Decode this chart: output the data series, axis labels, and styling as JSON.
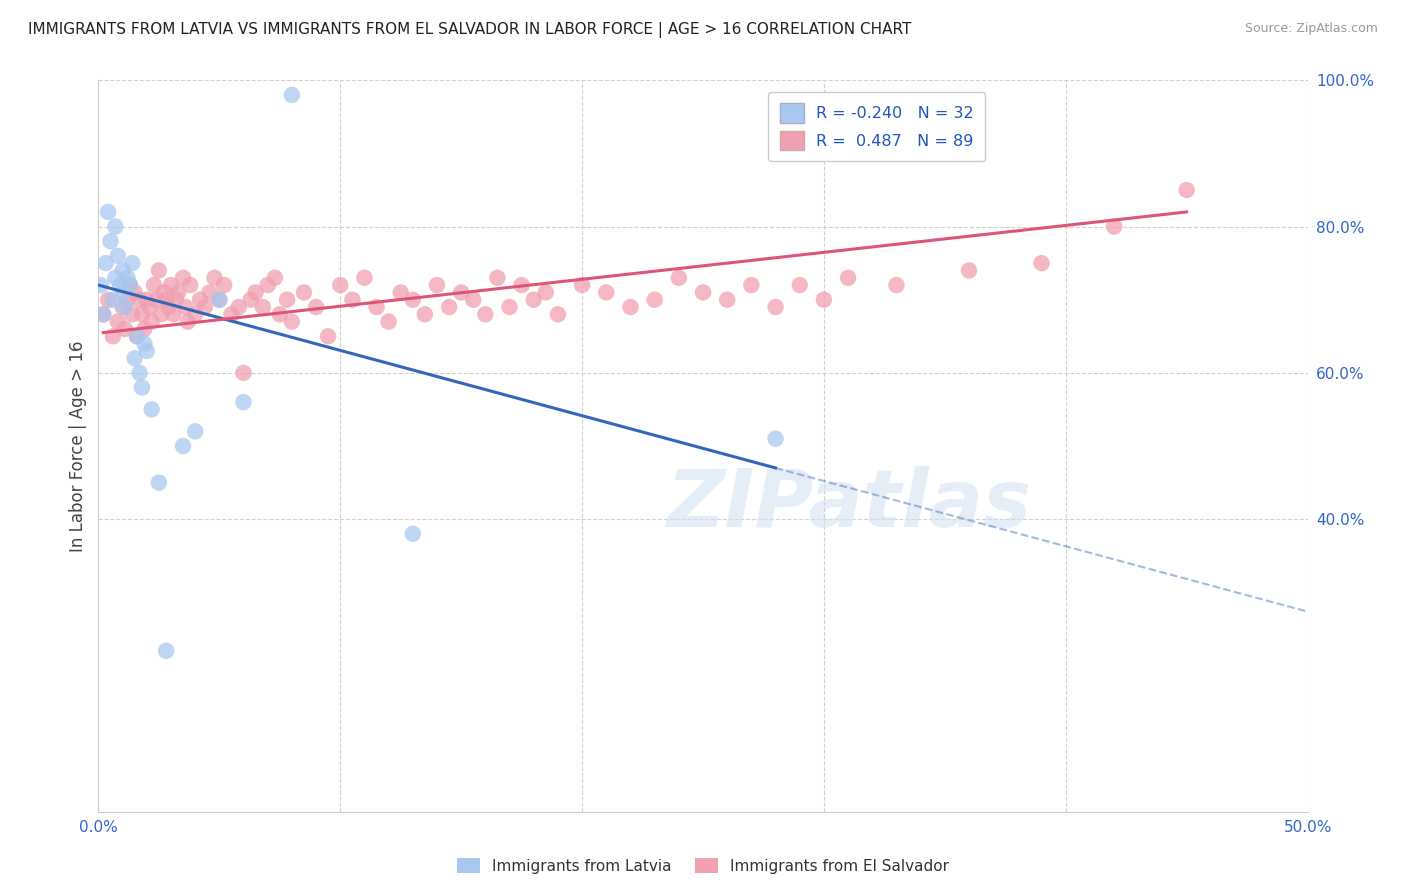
{
  "title": "IMMIGRANTS FROM LATVIA VS IMMIGRANTS FROM EL SALVADOR IN LABOR FORCE | AGE > 16 CORRELATION CHART",
  "source": "Source: ZipAtlas.com",
  "ylabel": "In Labor Force | Age > 16",
  "xlim": [
    0.0,
    0.5
  ],
  "ylim": [
    0.0,
    1.0
  ],
  "x_ticks": [
    0.0,
    0.1,
    0.2,
    0.3,
    0.4,
    0.5
  ],
  "x_tick_labels": [
    "0.0%",
    "",
    "",
    "",
    "",
    "50.0%"
  ],
  "y_ticks_right": [
    0.4,
    0.6,
    0.8,
    1.0
  ],
  "y_tick_labels_right": [
    "40.0%",
    "60.0%",
    "80.0%",
    "100.0%"
  ],
  "latvia_R": -0.24,
  "latvia_N": 32,
  "salvador_R": 0.487,
  "salvador_N": 89,
  "legend_label_latvia": "Immigrants from Latvia",
  "legend_label_salvador": "Immigrants from El Salvador",
  "latvia_color": "#a8c8f0",
  "salvador_color": "#f0a0b0",
  "latvia_line_color": "#3366bb",
  "salvador_line_color": "#dd5577",
  "watermark": "ZIPatlas",
  "background_color": "#ffffff",
  "grid_color": "#cccccc",
  "latvia_scatter_x": [
    0.001,
    0.002,
    0.003,
    0.004,
    0.005,
    0.006,
    0.007,
    0.007,
    0.008,
    0.009,
    0.01,
    0.01,
    0.011,
    0.012,
    0.013,
    0.014,
    0.015,
    0.016,
    0.017,
    0.018,
    0.019,
    0.02,
    0.022,
    0.025,
    0.028,
    0.035,
    0.04,
    0.05,
    0.06,
    0.08,
    0.13,
    0.28
  ],
  "latvia_scatter_y": [
    0.72,
    0.68,
    0.75,
    0.82,
    0.78,
    0.7,
    0.73,
    0.8,
    0.76,
    0.72,
    0.71,
    0.74,
    0.69,
    0.73,
    0.72,
    0.75,
    0.62,
    0.65,
    0.6,
    0.58,
    0.64,
    0.63,
    0.55,
    0.45,
    0.22,
    0.5,
    0.52,
    0.7,
    0.56,
    0.98,
    0.38,
    0.51
  ],
  "salvador_scatter_x": [
    0.002,
    0.004,
    0.006,
    0.008,
    0.01,
    0.011,
    0.012,
    0.013,
    0.014,
    0.015,
    0.016,
    0.017,
    0.018,
    0.019,
    0.02,
    0.021,
    0.022,
    0.023,
    0.024,
    0.025,
    0.026,
    0.027,
    0.028,
    0.029,
    0.03,
    0.031,
    0.032,
    0.033,
    0.035,
    0.036,
    0.037,
    0.038,
    0.04,
    0.042,
    0.044,
    0.046,
    0.048,
    0.05,
    0.052,
    0.055,
    0.058,
    0.06,
    0.063,
    0.065,
    0.068,
    0.07,
    0.073,
    0.075,
    0.078,
    0.08,
    0.085,
    0.09,
    0.095,
    0.1,
    0.105,
    0.11,
    0.115,
    0.12,
    0.125,
    0.13,
    0.135,
    0.14,
    0.145,
    0.15,
    0.155,
    0.16,
    0.165,
    0.17,
    0.175,
    0.18,
    0.185,
    0.19,
    0.2,
    0.21,
    0.22,
    0.23,
    0.24,
    0.25,
    0.26,
    0.27,
    0.28,
    0.29,
    0.3,
    0.31,
    0.33,
    0.36,
    0.39,
    0.42,
    0.45
  ],
  "salvador_scatter_y": [
    0.68,
    0.7,
    0.65,
    0.67,
    0.69,
    0.66,
    0.7,
    0.72,
    0.68,
    0.71,
    0.65,
    0.7,
    0.68,
    0.66,
    0.7,
    0.69,
    0.67,
    0.72,
    0.7,
    0.74,
    0.68,
    0.71,
    0.7,
    0.69,
    0.72,
    0.68,
    0.7,
    0.71,
    0.73,
    0.69,
    0.67,
    0.72,
    0.68,
    0.7,
    0.69,
    0.71,
    0.73,
    0.7,
    0.72,
    0.68,
    0.69,
    0.6,
    0.7,
    0.71,
    0.69,
    0.72,
    0.73,
    0.68,
    0.7,
    0.67,
    0.71,
    0.69,
    0.65,
    0.72,
    0.7,
    0.73,
    0.69,
    0.67,
    0.71,
    0.7,
    0.68,
    0.72,
    0.69,
    0.71,
    0.7,
    0.68,
    0.73,
    0.69,
    0.72,
    0.7,
    0.71,
    0.68,
    0.72,
    0.71,
    0.69,
    0.7,
    0.73,
    0.71,
    0.7,
    0.72,
    0.69,
    0.72,
    0.7,
    0.73,
    0.72,
    0.74,
    0.75,
    0.8,
    0.85
  ],
  "latvia_line_x0": 0.0,
  "latvia_line_y0": 0.72,
  "latvia_line_x1": 0.28,
  "latvia_line_y1": 0.47,
  "latvia_line_solid_end": 0.28,
  "latvia_line_dash_end": 0.5,
  "salvador_line_x0": 0.002,
  "salvador_line_y0": 0.655,
  "salvador_line_x1": 0.45,
  "salvador_line_y1": 0.82
}
